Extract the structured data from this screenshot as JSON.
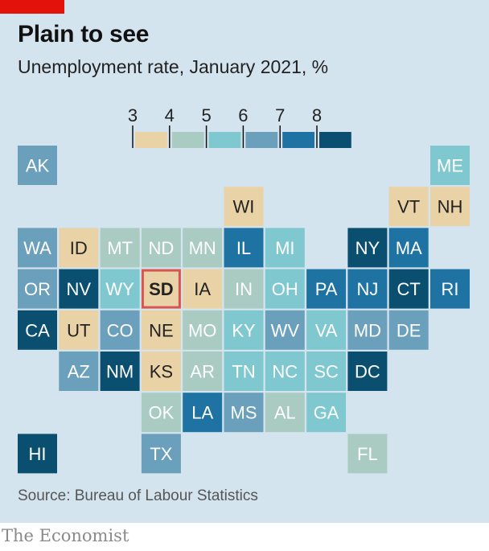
{
  "title": "Plain to see",
  "subtitle": "Unemployment rate, January 2021, %",
  "source": "Source: Bureau of Labour Statistics",
  "brand": "The Economist",
  "colors": {
    "background": "#d4e4ef",
    "accent_red": "#e3120b",
    "highlight_border": "#d9534f",
    "bins": [
      "#e8d2a6",
      "#a9cbc2",
      "#7fc8cf",
      "#6aa0bb",
      "#1f73a3",
      "#0b4f70"
    ]
  },
  "chart_data": {
    "type": "tile-map",
    "legend": {
      "ticks": [
        "3",
        "4",
        "5",
        "6",
        "7",
        "8"
      ],
      "bins": [
        "3-4",
        "4-5",
        "5-6",
        "6-7",
        "7-8",
        "8+"
      ]
    },
    "highlighted": "SD",
    "states": [
      {
        "label": "AK",
        "row": 0,
        "col": 0,
        "bin": 3
      },
      {
        "label": "ME",
        "row": 0,
        "col": 10,
        "bin": 2
      },
      {
        "label": "WI",
        "row": 1,
        "col": 5,
        "bin": 0
      },
      {
        "label": "VT",
        "row": 1,
        "col": 9,
        "bin": 0
      },
      {
        "label": "NH",
        "row": 1,
        "col": 10,
        "bin": 0
      },
      {
        "label": "WA",
        "row": 2,
        "col": 0,
        "bin": 3
      },
      {
        "label": "ID",
        "row": 2,
        "col": 1,
        "bin": 0
      },
      {
        "label": "MT",
        "row": 2,
        "col": 2,
        "bin": 1
      },
      {
        "label": "ND",
        "row": 2,
        "col": 3,
        "bin": 1
      },
      {
        "label": "MN",
        "row": 2,
        "col": 4,
        "bin": 1
      },
      {
        "label": "IL",
        "row": 2,
        "col": 5,
        "bin": 4
      },
      {
        "label": "MI",
        "row": 2,
        "col": 6,
        "bin": 2
      },
      {
        "label": "NY",
        "row": 2,
        "col": 8,
        "bin": 5
      },
      {
        "label": "MA",
        "row": 2,
        "col": 9,
        "bin": 4
      },
      {
        "label": "OR",
        "row": 3,
        "col": 0,
        "bin": 3
      },
      {
        "label": "NV",
        "row": 3,
        "col": 1,
        "bin": 5
      },
      {
        "label": "WY",
        "row": 3,
        "col": 2,
        "bin": 2
      },
      {
        "label": "SD",
        "row": 3,
        "col": 3,
        "bin": 0
      },
      {
        "label": "IA",
        "row": 3,
        "col": 4,
        "bin": 0
      },
      {
        "label": "IN",
        "row": 3,
        "col": 5,
        "bin": 1
      },
      {
        "label": "OH",
        "row": 3,
        "col": 6,
        "bin": 2
      },
      {
        "label": "PA",
        "row": 3,
        "col": 7,
        "bin": 4
      },
      {
        "label": "NJ",
        "row": 3,
        "col": 8,
        "bin": 4
      },
      {
        "label": "CT",
        "row": 3,
        "col": 9,
        "bin": 5
      },
      {
        "label": "RI",
        "row": 3,
        "col": 10,
        "bin": 4
      },
      {
        "label": "CA",
        "row": 4,
        "col": 0,
        "bin": 5
      },
      {
        "label": "UT",
        "row": 4,
        "col": 1,
        "bin": 0
      },
      {
        "label": "CO",
        "row": 4,
        "col": 2,
        "bin": 3
      },
      {
        "label": "NE",
        "row": 4,
        "col": 3,
        "bin": 0
      },
      {
        "label": "MO",
        "row": 4,
        "col": 4,
        "bin": 1
      },
      {
        "label": "KY",
        "row": 4,
        "col": 5,
        "bin": 2
      },
      {
        "label": "WV",
        "row": 4,
        "col": 6,
        "bin": 3
      },
      {
        "label": "VA",
        "row": 4,
        "col": 7,
        "bin": 2
      },
      {
        "label": "MD",
        "row": 4,
        "col": 8,
        "bin": 3
      },
      {
        "label": "DE",
        "row": 4,
        "col": 9,
        "bin": 3
      },
      {
        "label": "AZ",
        "row": 5,
        "col": 1,
        "bin": 3
      },
      {
        "label": "NM",
        "row": 5,
        "col": 2,
        "bin": 5
      },
      {
        "label": "KS",
        "row": 5,
        "col": 3,
        "bin": 0
      },
      {
        "label": "AR",
        "row": 5,
        "col": 4,
        "bin": 1
      },
      {
        "label": "TN",
        "row": 5,
        "col": 5,
        "bin": 2
      },
      {
        "label": "NC",
        "row": 5,
        "col": 6,
        "bin": 2
      },
      {
        "label": "SC",
        "row": 5,
        "col": 7,
        "bin": 2
      },
      {
        "label": "DC",
        "row": 5,
        "col": 8,
        "bin": 5
      },
      {
        "label": "OK",
        "row": 6,
        "col": 3,
        "bin": 1
      },
      {
        "label": "LA",
        "row": 6,
        "col": 4,
        "bin": 4
      },
      {
        "label": "MS",
        "row": 6,
        "col": 5,
        "bin": 3
      },
      {
        "label": "AL",
        "row": 6,
        "col": 6,
        "bin": 1
      },
      {
        "label": "GA",
        "row": 6,
        "col": 7,
        "bin": 2
      },
      {
        "label": "HI",
        "row": 7,
        "col": 0,
        "bin": 5
      },
      {
        "label": "TX",
        "row": 7,
        "col": 3,
        "bin": 3
      },
      {
        "label": "FL",
        "row": 7,
        "col": 8,
        "bin": 1
      }
    ]
  }
}
